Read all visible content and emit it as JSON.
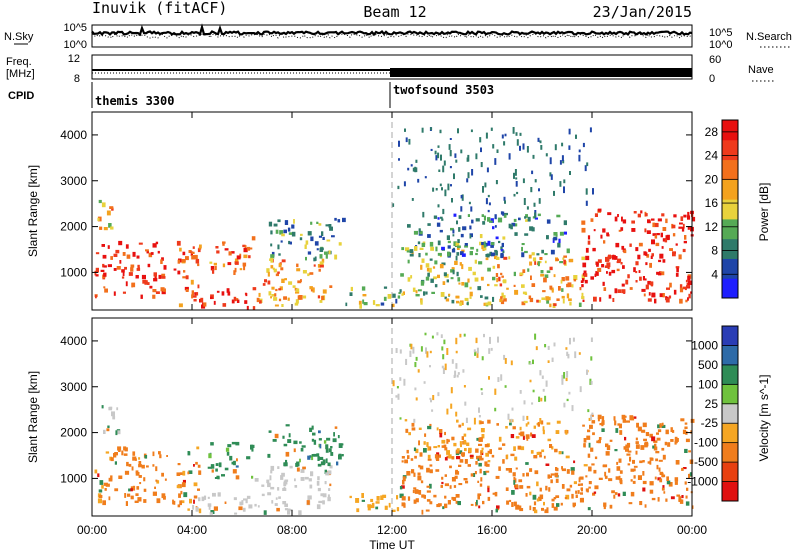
{
  "header": {
    "station": "Inuvik (fitACF)",
    "beam": "Beam 12",
    "date": "23/Jan/2015"
  },
  "nsky_panel": {
    "left_label": "N.Sky",
    "left_ticks": [
      "10^5",
      "10^0"
    ],
    "right_label": "N.Search",
    "right_ticks": [
      "10^5",
      "10^0"
    ]
  },
  "freq_panel": {
    "left_label_1": "Freq.",
    "left_label_2": "[MHz]",
    "left_ticks": [
      "12",
      "8"
    ],
    "right_label": "Nave",
    "right_ticks": [
      "60",
      "0"
    ]
  },
  "cpid": {
    "label": "CPID",
    "mode_1": "themis 3300",
    "mode_2": "twofsound 3503"
  },
  "colors": {
    "power_scale": [
      "#1f1fff",
      "#1f45a8",
      "#2f7a6a",
      "#55aa55",
      "#e8d23c",
      "#f4a21e",
      "#f2701c",
      "#ee3a1c",
      "#e8100f"
    ],
    "velocity_scale": [
      "#2a3db5",
      "#2e6ba8",
      "#2f8c56",
      "#6fc23d",
      "#c8c8c8",
      "#f5a623",
      "#f07d1c",
      "#e8400f",
      "#e0100f"
    ]
  },
  "chart_data": [
    {
      "type": "heatmap",
      "title": "",
      "xlabel": "Time UT",
      "ylabel": "Slant Range [km]",
      "x_ticks": [
        "00:00",
        "04:00",
        "08:00",
        "12:00",
        "16:00",
        "20:00",
        "00:00"
      ],
      "y_ticks": [
        "1000",
        "2000",
        "3000",
        "4000"
      ],
      "xlim": [
        0,
        24
      ],
      "ylim": [
        180,
        4500
      ],
      "grid": false,
      "colorbar": {
        "label": "Power [dB]",
        "ticks": [
          "4",
          "8",
          "12",
          "16",
          "20",
          "24",
          "28"
        ],
        "range": [
          0,
          30
        ]
      },
      "regions": [
        {
          "t0": 0.1,
          "t1": 3.0,
          "r0": 500,
          "r1": 1700,
          "value": 26
        },
        {
          "t0": 0.2,
          "t1": 1.0,
          "r0": 1900,
          "r1": 2600,
          "value": 18
        },
        {
          "t0": 3.2,
          "t1": 4.3,
          "r0": 300,
          "r1": 1700,
          "value": 24
        },
        {
          "t0": 4.0,
          "t1": 6.5,
          "r0": 250,
          "r1": 700,
          "value": 28
        },
        {
          "t0": 4.6,
          "t1": 6.4,
          "r0": 1000,
          "r1": 1800,
          "value": 22
        },
        {
          "t0": 6.5,
          "t1": 9.5,
          "r0": 300,
          "r1": 1300,
          "value": 20
        },
        {
          "t0": 7.0,
          "t1": 10.0,
          "r0": 1300,
          "r1": 2200,
          "value": 10
        },
        {
          "t0": 10.0,
          "t1": 12.3,
          "r0": 300,
          "r1": 700,
          "value": 12
        },
        {
          "t0": 12.3,
          "t1": 16.0,
          "r0": 300,
          "r1": 1700,
          "value": 14
        },
        {
          "t0": 12.5,
          "t1": 19.0,
          "r0": 1400,
          "r1": 2300,
          "value": 8
        },
        {
          "t0": 16.0,
          "t1": 20.0,
          "r0": 300,
          "r1": 1400,
          "value": 18
        },
        {
          "t0": 19.5,
          "t1": 24.0,
          "r0": 400,
          "r1": 2400,
          "value": 27
        }
      ]
    },
    {
      "type": "heatmap",
      "title": "",
      "xlabel": "Time UT",
      "ylabel": "Slant Range [km]",
      "x_ticks": [
        "00:00",
        "04:00",
        "08:00",
        "12:00",
        "16:00",
        "20:00",
        "00:00"
      ],
      "y_ticks": [
        "1000",
        "2000",
        "3000",
        "4000"
      ],
      "xlim": [
        0,
        24
      ],
      "ylim": [
        180,
        4500
      ],
      "grid": false,
      "colorbar": {
        "label": "Velocity [m s^-1]",
        "ticks": [
          "1000",
          "500",
          "100",
          "25",
          "-25",
          "-100",
          "-500",
          "-1000"
        ]
      },
      "regions": [
        {
          "t0": 0.1,
          "t1": 3.0,
          "r0": 500,
          "r1": 1700,
          "value": -150
        },
        {
          "t0": 0.2,
          "t1": 1.0,
          "r0": 1900,
          "r1": 2600,
          "value": 0
        },
        {
          "t0": 3.2,
          "t1": 4.3,
          "r0": 300,
          "r1": 1700,
          "value": -120
        },
        {
          "t0": 4.0,
          "t1": 6.5,
          "r0": 250,
          "r1": 700,
          "value": 0
        },
        {
          "t0": 4.6,
          "t1": 6.4,
          "r0": 1000,
          "r1": 1800,
          "value": 150
        },
        {
          "t0": 6.5,
          "t1": 9.5,
          "r0": 300,
          "r1": 1300,
          "value": 0
        },
        {
          "t0": 7.0,
          "t1": 10.0,
          "r0": 1300,
          "r1": 2200,
          "value": 150
        },
        {
          "t0": 10.0,
          "t1": 12.3,
          "r0": 300,
          "r1": 700,
          "value": -60
        },
        {
          "t0": 12.3,
          "t1": 16.0,
          "r0": 300,
          "r1": 1700,
          "value": -200
        },
        {
          "t0": 12.5,
          "t1": 19.0,
          "r0": 1400,
          "r1": 2300,
          "value": -100
        },
        {
          "t0": 16.0,
          "t1": 20.0,
          "r0": 300,
          "r1": 1400,
          "value": -150
        },
        {
          "t0": 19.5,
          "t1": 24.0,
          "r0": 400,
          "r1": 2400,
          "value": -200
        }
      ]
    }
  ]
}
